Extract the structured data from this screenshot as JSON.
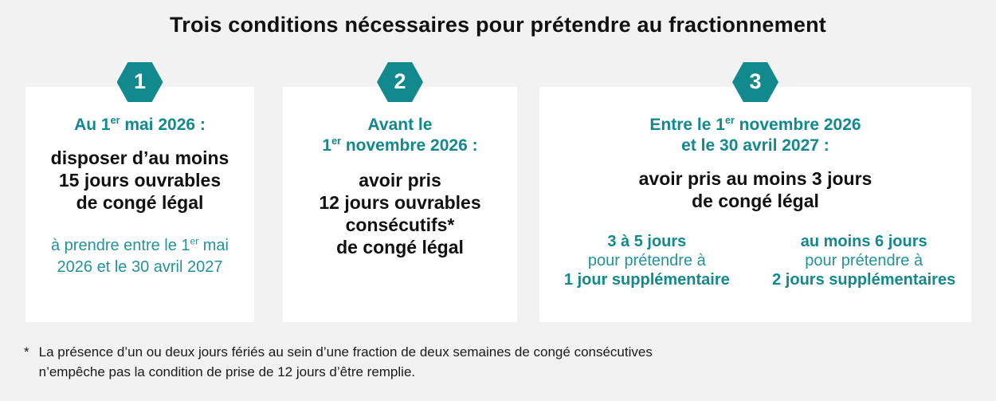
{
  "title": "Trois conditions nécessaires pour prétendre au fractionnement",
  "colors": {
    "accent_teal": "#12898D",
    "background": "#F2F2F2",
    "card": "#FFFFFF",
    "text_dark": "#111111"
  },
  "cards": [
    {
      "badge": "1",
      "heading_lines": [
        {
          "pre": "Au 1",
          "sup": "er",
          "post": " mai 2026 :"
        }
      ],
      "body_lines": [
        "disposer d’au moins",
        "15 jours ouvrables",
        "de congé légal"
      ],
      "note_lines": [
        {
          "pre": "à prendre entre le 1",
          "sup": "er",
          "post": " mai"
        },
        {
          "pre": "2026 et le 30 avril 2027"
        }
      ]
    },
    {
      "badge": "2",
      "heading_lines": [
        {
          "pre": "Avant le"
        },
        {
          "pre": "1",
          "sup": "er",
          "post": " novembre 2026 :"
        }
      ],
      "body_lines": [
        "avoir pris",
        "12 jours ouvrables",
        "consécutifs*",
        "de congé légal"
      ]
    },
    {
      "badge": "3",
      "heading_lines": [
        {
          "pre": "Entre le 1",
          "sup": "er",
          "post": " novembre 2026"
        },
        {
          "pre": "et le 30 avril 2027 :"
        }
      ],
      "body_lines": [
        "avoir pris au moins 3 jours",
        "de congé légal"
      ],
      "options": [
        {
          "amount": "3 à 5 jours",
          "middle": "pour prétendre à",
          "result": "1 jour supplémentaire"
        },
        {
          "amount": "au moins 6 jours",
          "middle": "pour prétendre à",
          "result": "2 jours supplémentaires"
        }
      ]
    }
  ],
  "footnote": {
    "marker": "*",
    "line1": "La présence d’un ou deux jours fériés au sein d’une fraction de deux semaines de congé consécutives",
    "line2": "n’empêche pas la condition de prise de 12 jours d’être remplie."
  }
}
